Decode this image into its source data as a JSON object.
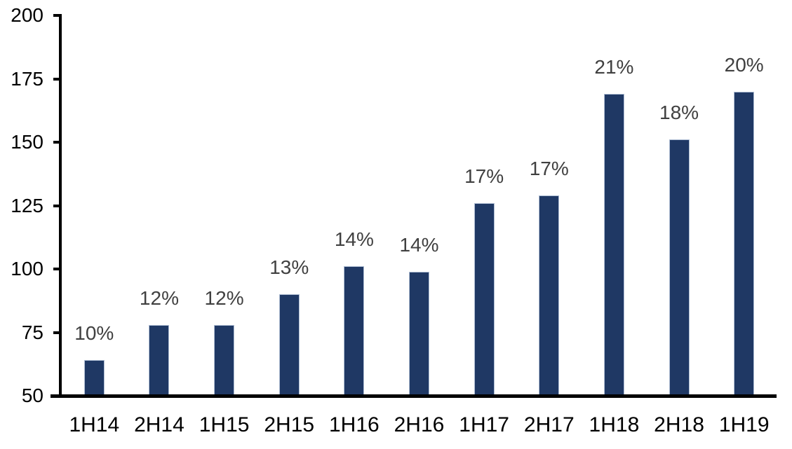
{
  "chart_data": {
    "type": "bar",
    "title": "",
    "xlabel": "",
    "ylabel": "",
    "categories": [
      "1H14",
      "2H14",
      "1H15",
      "2H15",
      "1H16",
      "2H16",
      "1H17",
      "2H17",
      "1H18",
      "2H18",
      "1H19"
    ],
    "values": [
      64,
      78,
      78,
      90,
      101,
      99,
      126,
      129,
      169,
      151,
      170
    ],
    "bar_labels": [
      "10%",
      "12%",
      "12%",
      "13%",
      "14%",
      "14%",
      "17%",
      "17%",
      "21%",
      "18%",
      "20%"
    ],
    "ylim": [
      50,
      200
    ],
    "yticks": [
      50,
      75,
      100,
      125,
      150,
      175,
      200
    ],
    "ytick_labels": [
      "50",
      "75",
      "100",
      "125",
      "150",
      "175",
      "200"
    ],
    "grid": false,
    "legend": null,
    "colors": {
      "bar_fill": "#1f3864",
      "bar_border": "#aebdd3",
      "bar_label_text": "#404040",
      "axis_text": "#000000",
      "axis_line": "#000000",
      "background": "#ffffff"
    }
  }
}
